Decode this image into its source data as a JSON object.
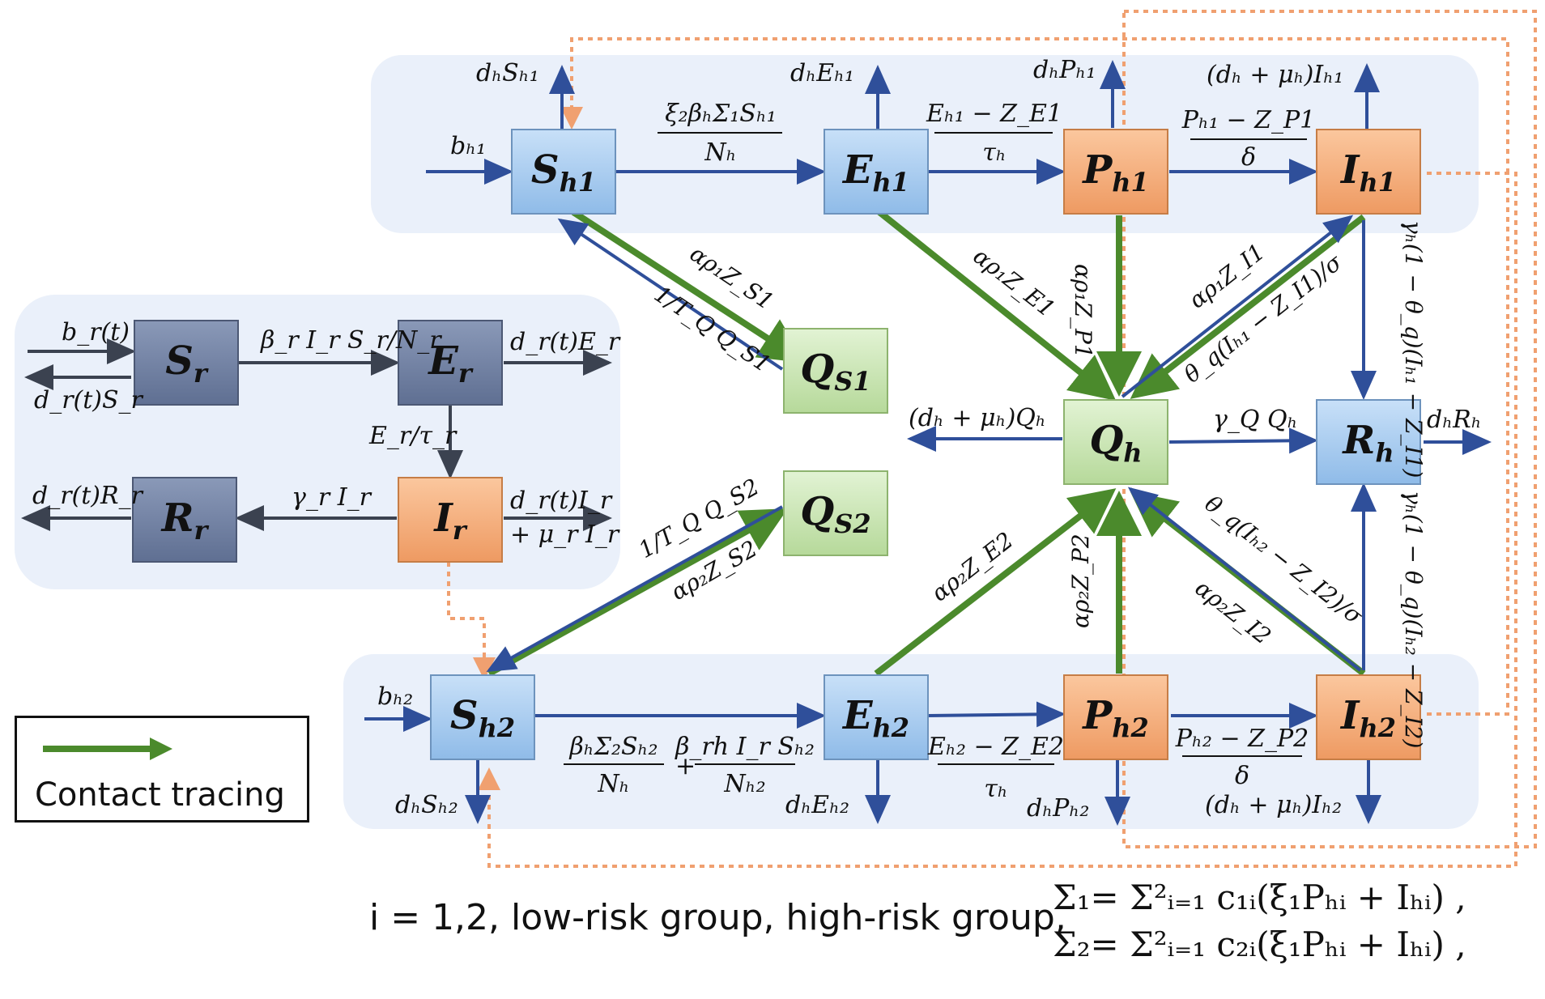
{
  "boxes": {
    "Sh1": {
      "main": "S",
      "sub": "h1"
    },
    "Eh1": {
      "main": "E",
      "sub": "h1"
    },
    "Ph1": {
      "main": "P",
      "sub": "h1"
    },
    "Ih1": {
      "main": "I",
      "sub": "h1"
    },
    "Qs1": {
      "main": "Q",
      "sub": "S1"
    },
    "Qs2": {
      "main": "Q",
      "sub": "S2"
    },
    "Qh": {
      "main": "Q",
      "sub": "h"
    },
    "Rh": {
      "main": "R",
      "sub": "h"
    },
    "Sh2": {
      "main": "S",
      "sub": "h2"
    },
    "Eh2": {
      "main": "E",
      "sub": "h2"
    },
    "Ph2": {
      "main": "P",
      "sub": "h2"
    },
    "Ih2": {
      "main": "I",
      "sub": "h2"
    },
    "Sr": {
      "main": "S",
      "sub": "r"
    },
    "Er": {
      "main": "E",
      "sub": "r"
    },
    "Ir": {
      "main": "I",
      "sub": "r"
    },
    "Rr": {
      "main": "R",
      "sub": "r"
    }
  },
  "labels": {
    "dhSh1": "dₕSₕ₁",
    "dhEh1": "dₕEₕ₁",
    "dhPh1": "dₕPₕ₁",
    "dhmuIh1": "(dₕ + μₕ)Iₕ₁",
    "bh1": "bₕ₁",
    "infect_num": "ξ₂βₕΣ₁Sₕ₁",
    "infect_den": "Nₕ",
    "EZ1_num": "Eₕ₁ − Z_E1",
    "EZ1_den": "τₕ",
    "PZ1_num": "Pₕ₁ − Z_P1",
    "PZ1_den": "δ",
    "aZS1": "αρ₁Z_S1",
    "TQS1": "1/T_Q Q_S1",
    "aZE1": "αρ₁Z_E1",
    "aZP1": "αρ₁Z_P1",
    "aZI1": "αρ₁Z_I1",
    "thIh1": "θ_q(Iₕ₁ − Z_I1)/σ",
    "gIh1": "γₕ(1 − θ_q)(Iₕ₁ − Z_I1)",
    "dhmuQh": "(dₕ + μₕ)Qₕ",
    "gQQh": "γ_Q Qₕ",
    "dhRh": "dₕRₕ",
    "TQS2": "1/T_Q Q_S2",
    "aZS2": "αρ₂Z_S2",
    "aZE2": "αρ₂Z_E2",
    "aZP2": "αρ₂Z_P2",
    "aZI2": "αρ₂Z_I2",
    "thIh2": "θ_q(Iₕ₂ − Z_I2)/σ",
    "gIh2": "γₕ(1 − θ_q)(Iₕ₂ − Z_I2)",
    "bh2": "bₕ₂",
    "dhSh2": "dₕSₕ₂",
    "dhEh2": "dₕEₕ₂",
    "dhPh2": "dₕPₕ₂",
    "dhmuIh2": "(dₕ + μₕ)Iₕ₂",
    "inf2a_num": "βₕΣ₂Sₕ₂",
    "inf2a_den": "Nₕ",
    "plus": "+",
    "inf2b_num": "β_rh I_r Sₕ₂",
    "inf2b_den": "Nₕ₂",
    "EZ2_num": "Eₕ₂ − Z_E2",
    "EZ2_den": "τₕ",
    "PZ2_num": "Pₕ₂ − Z_P2",
    "PZ2_den": "δ",
    "brt": "b_r(t)",
    "drtSr": "d_r(t)S_r",
    "brIS": "β_r I_r S_r/N_r",
    "drtEr": "d_r(t)E_r",
    "Ertr": "E_r/τ_r",
    "drtRr": "d_r(t)R_r",
    "grIr": "γ_r I_r",
    "drtIr": "d_r(t)I_r",
    "murIr": "+ μ_r I_r"
  },
  "legend": {
    "label": "Contact tracing"
  },
  "footer": {
    "i_def": "i = 1,2, low-risk group, high-risk group,",
    "sum1": "Σ₁= Σ²ᵢ₌₁ c₁ᵢ(ξ₁Pₕᵢ + Iₕᵢ) ,",
    "sum2": "Σ₂= Σ²ᵢ₌₁ c₂ᵢ(ξ₁Pₕᵢ + Iₕᵢ) ,"
  },
  "colors": {
    "blue_box": "#a9cdf0",
    "orange_box": "#f6b07e",
    "green_box": "#cce8b5",
    "gray_box": "#7282a3",
    "arrow_blue": "#2f4f9a",
    "arrow_green": "#4b8a2c",
    "dotted_orange": "#f0a070",
    "panel": "#eaf0fa"
  }
}
